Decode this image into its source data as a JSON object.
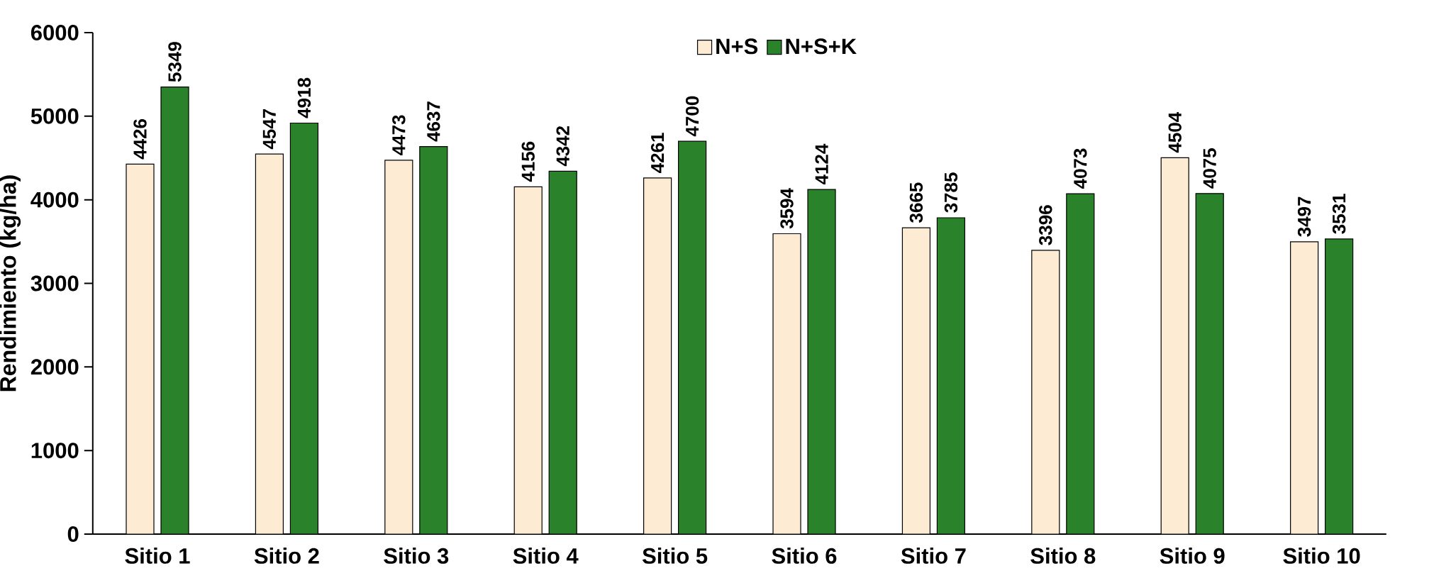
{
  "chart_data": {
    "type": "bar",
    "ylabel": "Rendimiento (kg/ha)",
    "categories": [
      "Sitio 1",
      "Sitio 2",
      "Sitio 3",
      "Sitio 4",
      "Sitio 5",
      "Sitio 6",
      "Sitio 7",
      "Sitio 8",
      "Sitio 9",
      "Sitio 10"
    ],
    "series": [
      {
        "name": "N+S",
        "color": "#fdebd3",
        "values": [
          4426,
          4547,
          4473,
          4156,
          4261,
          3594,
          3665,
          3396,
          4504,
          3497
        ]
      },
      {
        "name": "N+S+K",
        "color": "#2a832a",
        "values": [
          5349,
          4918,
          4637,
          4342,
          4700,
          4124,
          3785,
          4073,
          4075,
          3531
        ]
      }
    ],
    "ylim": [
      0,
      6000
    ],
    "yticks": [
      0,
      1000,
      2000,
      3000,
      4000,
      5000,
      6000
    ],
    "data_labels": true,
    "legend": "top",
    "grid": false
  }
}
